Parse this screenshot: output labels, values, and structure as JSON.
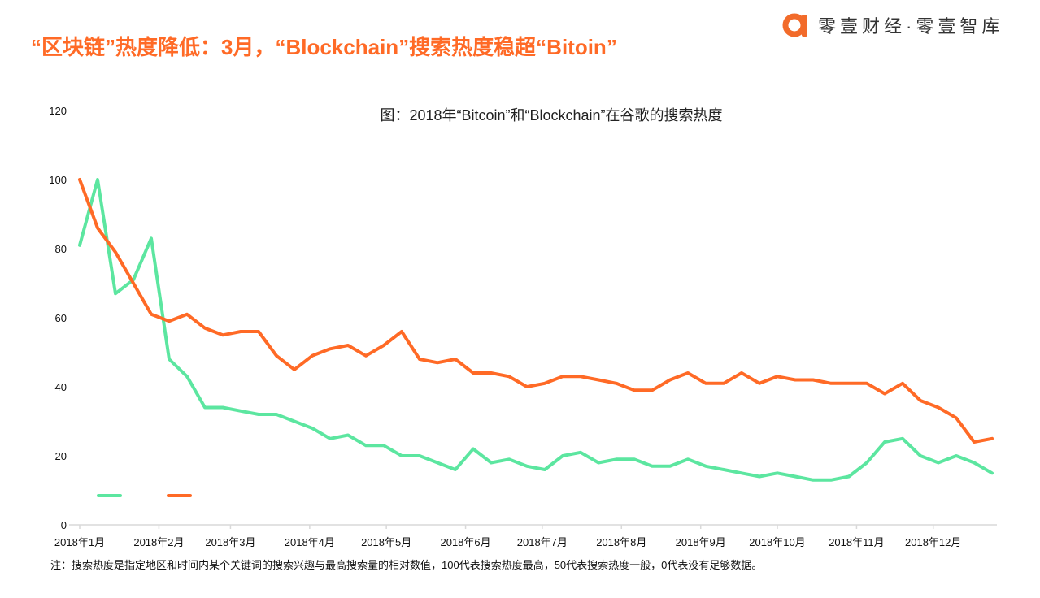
{
  "header": {
    "title": "“区块链”热度降低：3月，“Blockchain”搜索热度稳超“Bitoin”",
    "logo_text": "零壹财经·零壹智库"
  },
  "footnote": "注：搜索热度是指定地区和时间内某个关键词的搜索兴趣与最高搜索量的相对数值，100代表搜索热度最高，50代表搜索热度一般，0代表没有足够数据。",
  "colors": {
    "accent": "#FF6A26",
    "series_green": "#5CE6A0",
    "series_orange": "#FF6A26"
  },
  "chart_data": {
    "type": "line",
    "title": "图：2018年“Bitcoin”和“Blockchain”在谷歌的搜索热度",
    "xlabel": "",
    "ylabel": "",
    "ylim": [
      0,
      120
    ],
    "yticks": [
      "0",
      "20",
      "40",
      "60",
      "80",
      "100",
      "120"
    ],
    "xticks": [
      {
        "date": "2018-01-01",
        "label": "2018年1月"
      },
      {
        "date": "2018-02-01",
        "label": "2018年2月"
      },
      {
        "date": "2018-03-01",
        "label": "2018年3月"
      },
      {
        "date": "2018-04-01",
        "label": "2018年4月"
      },
      {
        "date": "2018-05-01",
        "label": "2018年5月"
      },
      {
        "date": "2018-06-01",
        "label": "2018年6月"
      },
      {
        "date": "2018-07-01",
        "label": "2018年7月"
      },
      {
        "date": "2018-08-01",
        "label": "2018年8月"
      },
      {
        "date": "2018-09-01",
        "label": "2018年9月"
      },
      {
        "date": "2018-10-01",
        "label": "2018年10月"
      },
      {
        "date": "2018-11-01",
        "label": "2018年11月"
      },
      {
        "date": "2018-12-01",
        "label": "2018年12月"
      }
    ],
    "grid": false,
    "legend": "bottom-left",
    "x": [
      "2018-01-01",
      "2018-01-08",
      "2018-01-15",
      "2018-01-22",
      "2018-01-29",
      "2018-02-05",
      "2018-02-12",
      "2018-02-19",
      "2018-02-26",
      "2018-03-05",
      "2018-03-12",
      "2018-03-19",
      "2018-03-26",
      "2018-04-02",
      "2018-04-09",
      "2018-04-16",
      "2018-04-23",
      "2018-04-30",
      "2018-05-07",
      "2018-05-14",
      "2018-05-21",
      "2018-05-28",
      "2018-06-04",
      "2018-06-11",
      "2018-06-18",
      "2018-06-25",
      "2018-07-02",
      "2018-07-09",
      "2018-07-16",
      "2018-07-23",
      "2018-07-30",
      "2018-08-06",
      "2018-08-13",
      "2018-08-20",
      "2018-08-27",
      "2018-09-03",
      "2018-09-10",
      "2018-09-17",
      "2018-09-24",
      "2018-10-01",
      "2018-10-08",
      "2018-10-15",
      "2018-10-22",
      "2018-10-29",
      "2018-11-05",
      "2018-11-12",
      "2018-11-19",
      "2018-11-26",
      "2018-12-03",
      "2018-12-10",
      "2018-12-17",
      "2018-12-24"
    ],
    "series": [
      {
        "color": "#5CE6A0",
        "values": [
          81,
          100,
          67,
          71,
          83,
          48,
          43,
          34,
          34,
          33,
          32,
          32,
          30,
          28,
          25,
          26,
          23,
          23,
          20,
          20,
          18,
          16,
          22,
          18,
          19,
          17,
          16,
          20,
          21,
          18,
          19,
          19,
          17,
          17,
          19,
          17,
          16,
          15,
          14,
          15,
          14,
          13,
          13,
          14,
          18,
          24,
          25,
          20,
          18,
          20,
          18,
          15
        ]
      },
      {
        "color": "#FF6A26",
        "values": [
          100,
          86,
          79,
          70,
          61,
          59,
          61,
          57,
          55,
          56,
          56,
          49,
          45,
          49,
          51,
          52,
          49,
          52,
          56,
          48,
          47,
          48,
          44,
          44,
          43,
          40,
          41,
          43,
          43,
          42,
          41,
          39,
          39,
          42,
          44,
          41,
          41,
          44,
          41,
          43,
          42,
          42,
          41,
          41,
          41,
          38,
          41,
          36,
          34,
          31,
          24,
          25
        ]
      }
    ]
  }
}
